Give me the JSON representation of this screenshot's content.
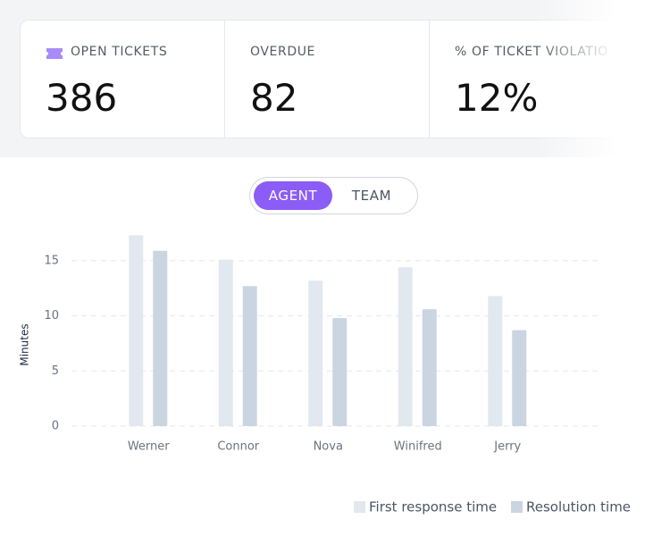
{
  "stats": [
    {
      "label": "OPEN TICKETS",
      "value": "386"
    },
    {
      "label": "OVERDUE",
      "value": "82"
    },
    {
      "label": "% OF TICKET VIOLATIO",
      "value": "12%"
    }
  ],
  "toggle": [
    "AGENT",
    "TEAM"
  ],
  "chart_data": {
    "type": "bar",
    "y_label": "Minutes",
    "categories": [
      "Werner",
      "Connor",
      "Nova",
      "Winifred",
      "Jerry"
    ],
    "series": [
      {
        "name": "First response time",
        "color": "#e2e8f0",
        "values": [
          17.3,
          15.1,
          13.2,
          14.4,
          11.8
        ]
      },
      {
        "name": "Resolution time",
        "color": "#cbd5e1",
        "values": [
          15.9,
          12.7,
          9.8,
          10.6,
          8.7
        ]
      }
    ],
    "ylim": [
      0,
      17.5
    ],
    "yticks": [
      0,
      5,
      10,
      15
    ],
    "grid": true
  }
}
